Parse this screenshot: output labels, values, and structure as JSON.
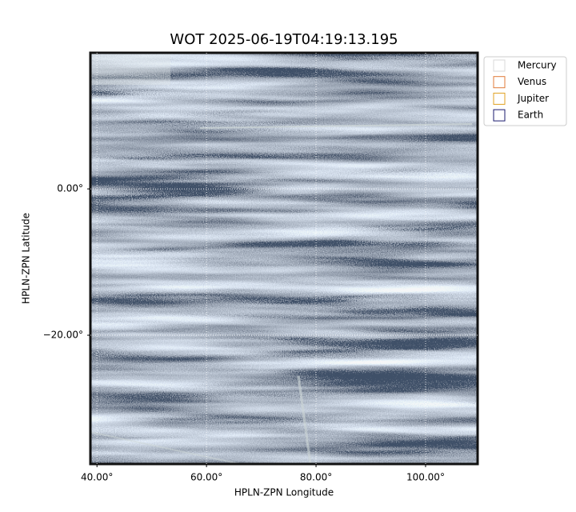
{
  "chart_data": {
    "type": "image",
    "title": "WOT 2025-06-19T04:19:13.195",
    "x_label": "HPLN-ZPN Longitude",
    "y_label": "HPLN-ZPN Latitude",
    "xlim": [
      38.8,
      109.5
    ],
    "ylim": [
      -37.6,
      18.6
    ],
    "xticks": [
      {
        "value": 40,
        "label": "40.00°"
      },
      {
        "value": 60,
        "label": "60.00°"
      },
      {
        "value": 80,
        "label": "80.00°"
      },
      {
        "value": 100,
        "label": "100.00°"
      }
    ],
    "yticks": [
      {
        "value": 0,
        "label": "0.00°"
      },
      {
        "value": -20,
        "label": "−20.00°"
      }
    ],
    "grid": true,
    "legend": "upper right outside",
    "series": [
      {
        "name": "Mercury",
        "color": "#d8d8d8"
      },
      {
        "name": "Venus",
        "color": "#e07b39"
      },
      {
        "name": "Jupiter",
        "color": "#e0a020"
      },
      {
        "name": "Earth",
        "color": "#1a1a6e"
      }
    ]
  }
}
